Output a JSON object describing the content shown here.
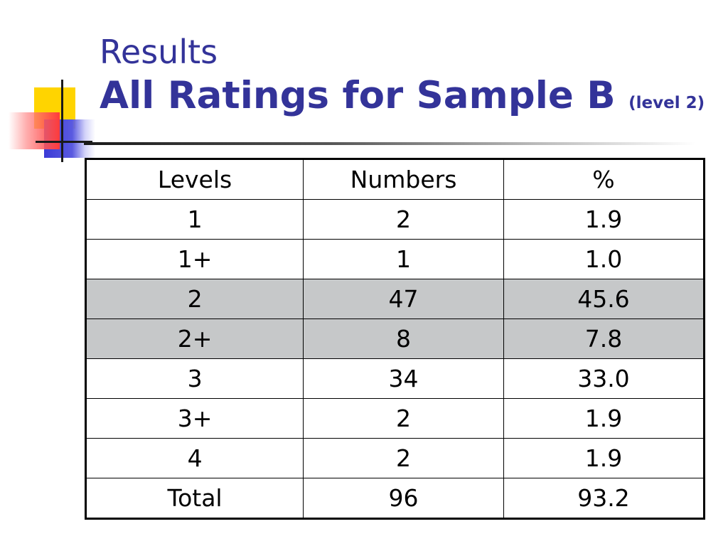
{
  "title": {
    "line1": "Results",
    "line2": "All Ratings for Sample B",
    "line2_suffix": "(level 2)"
  },
  "table": {
    "headers": [
      "Levels",
      "Numbers",
      "%"
    ],
    "rows": [
      {
        "level": "1",
        "number": "2",
        "percent": "1.9"
      },
      {
        "level": "1+",
        "number": "1",
        "percent": "1.0"
      },
      {
        "level": "2",
        "number": "47",
        "percent": "45.6"
      },
      {
        "level": "2+",
        "number": "8",
        "percent": "7.8"
      },
      {
        "level": "3",
        "number": "34",
        "percent": "33.0"
      },
      {
        "level": "3+",
        "number": "2",
        "percent": "1.9"
      },
      {
        "level": "4",
        "number": "2",
        "percent": "1.9"
      },
      {
        "level": "Total",
        "number": "96",
        "percent": "93.2"
      }
    ]
  },
  "colors": {
    "title": "#333399",
    "highlight_row": "#c6c8c9",
    "accent_yellow": "#ffd400",
    "accent_blue": "#3b3bd6",
    "accent_red": "#ff3b3b"
  }
}
